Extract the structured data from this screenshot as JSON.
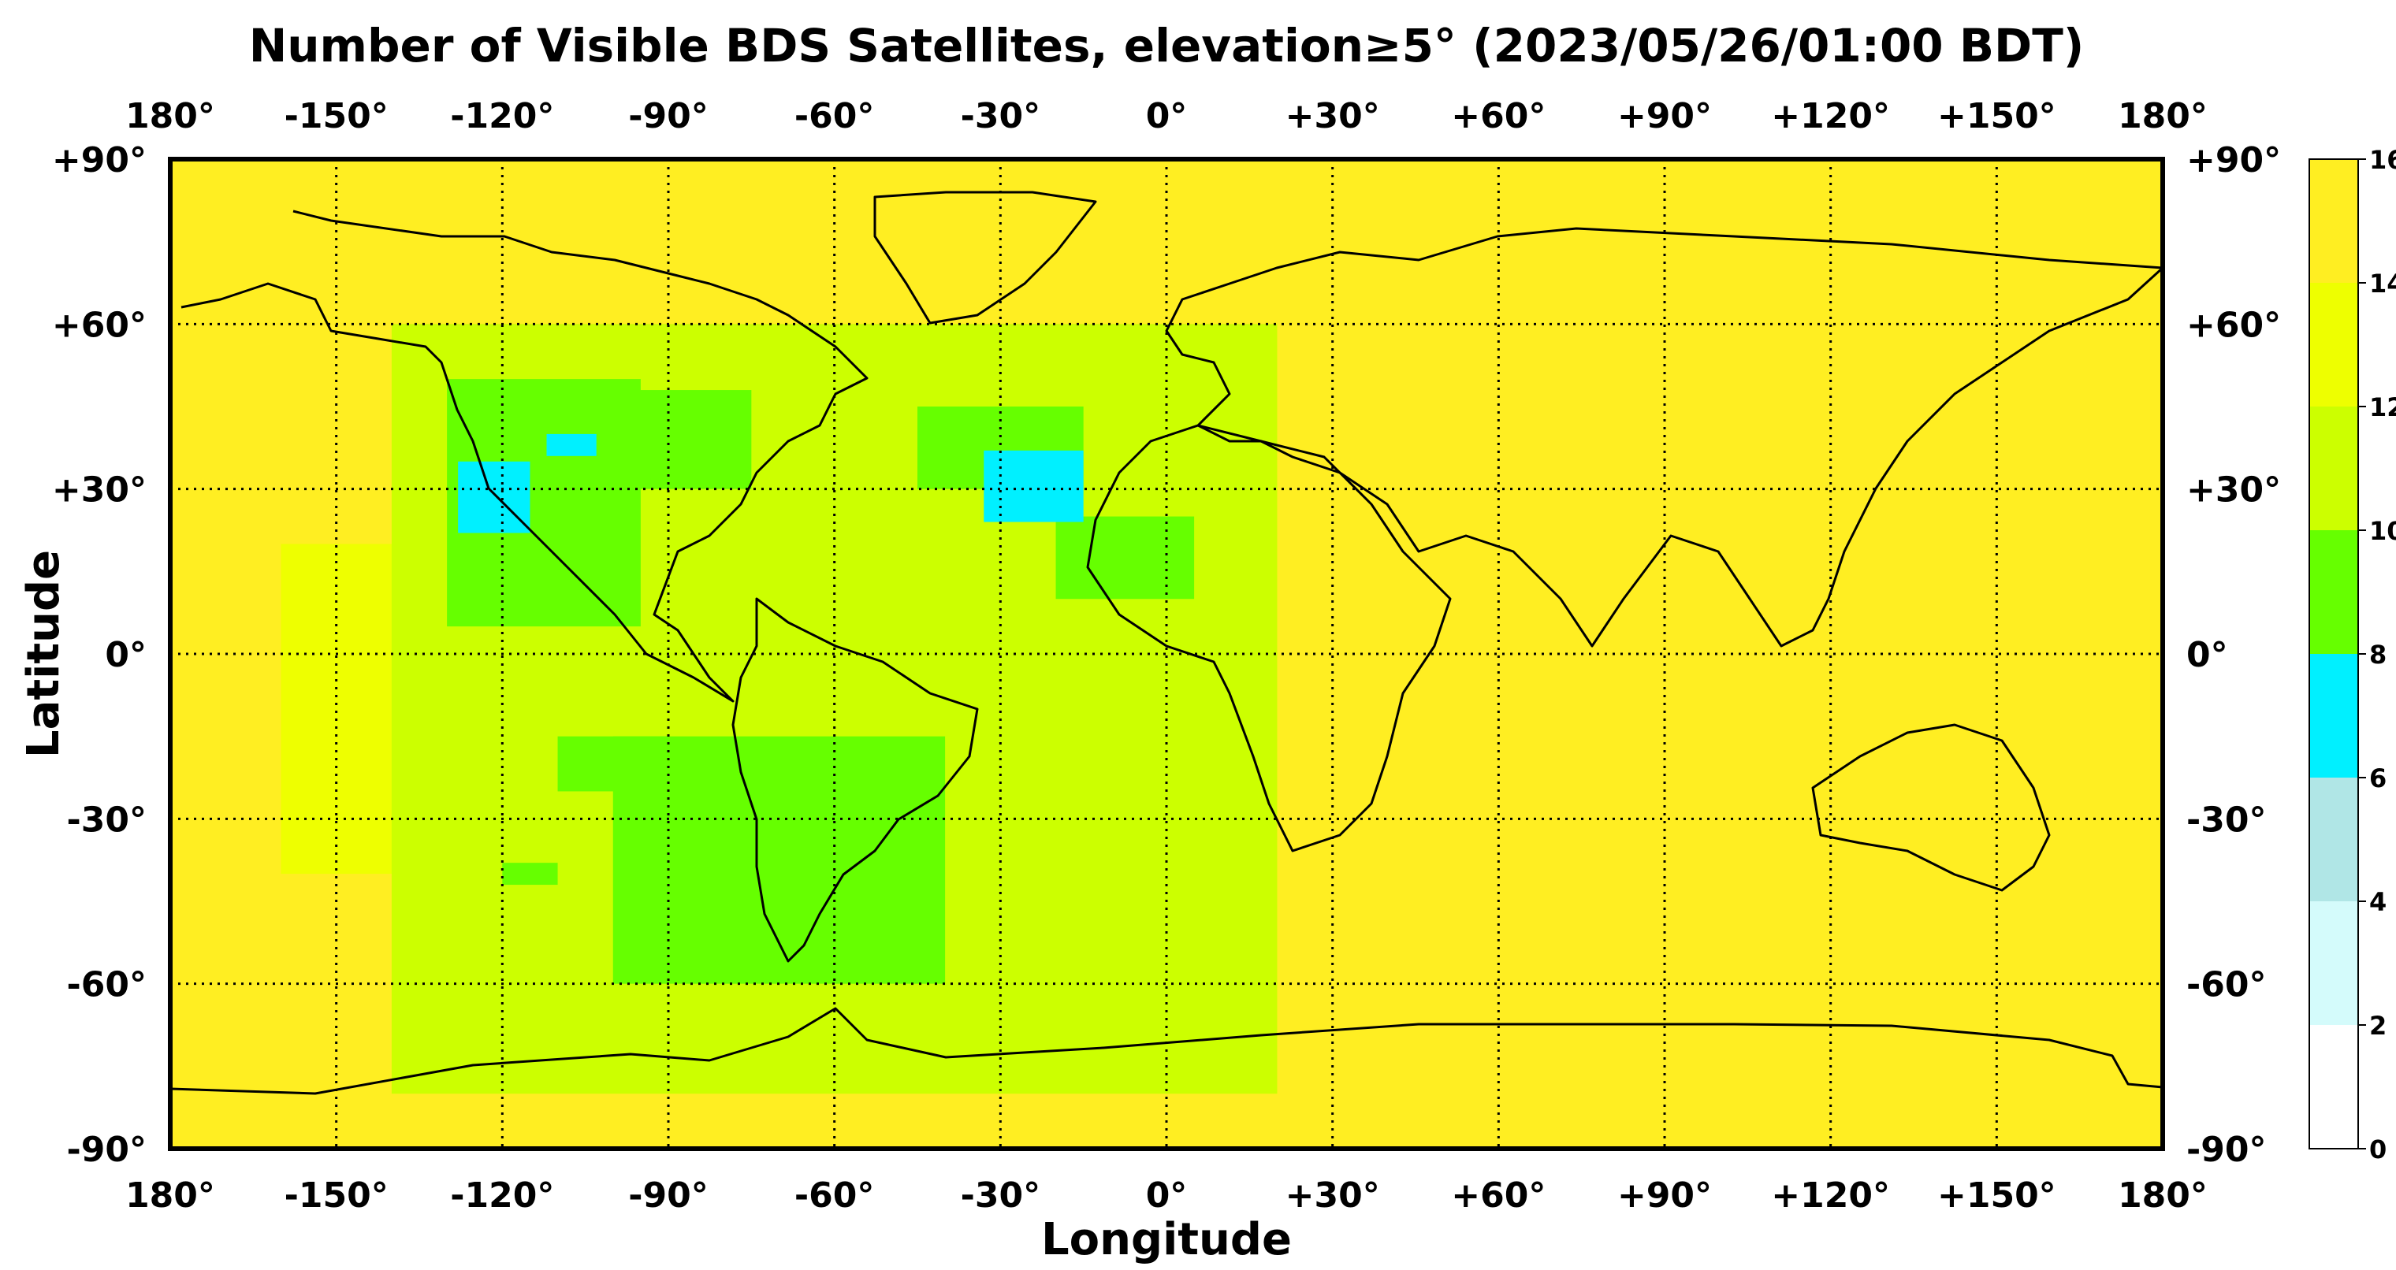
{
  "chart_data": {
    "type": "heatmap",
    "title": "Number of Visible BDS Satellites, elevation≥5° (2023/05/26/01:00 BDT)",
    "xlabel": "Longitude",
    "ylabel": "Latitude",
    "xlim": [
      -180,
      180
    ],
    "ylim": [
      -90,
      90
    ],
    "x_ticks": [
      -180,
      -150,
      -120,
      -90,
      -60,
      -30,
      0,
      30,
      60,
      90,
      120,
      150,
      180
    ],
    "y_ticks": [
      90,
      60,
      30,
      0,
      -30,
      -60,
      -90
    ],
    "x_tick_labels": [
      "180°",
      "-150°",
      "-120°",
      "-90°",
      "-60°",
      "-30°",
      "0°",
      "+30°",
      "+60°",
      "+90°",
      "+120°",
      "+150°",
      "180°"
    ],
    "y_tick_labels": [
      "+90°",
      "+60°",
      "+30°",
      "0°",
      "-30°",
      "-60°",
      "-90°"
    ],
    "grid": true,
    "grid_style": "dotted",
    "colorbar": {
      "boundaries": [
        0,
        2,
        4,
        6,
        8,
        10,
        12,
        14,
        16
      ],
      "tick_labels": [
        "0",
        "2",
        "4",
        "6",
        "8",
        "10",
        "12",
        "14",
        "16"
      ],
      "colors": [
        "#ffffff",
        "#d4fbfb",
        "#b0e6e6",
        "#00f0ff",
        "#66ff00",
        "#ccff00",
        "#eeff00",
        "#ffee22"
      ]
    },
    "background_value": 15,
    "regions": [
      {
        "lon": [
          -160,
          -120
        ],
        "lat": [
          -40,
          20
        ],
        "value": 13
      },
      {
        "lon": [
          -140,
          20
        ],
        "lat": [
          -80,
          60
        ],
        "value": 11
      },
      {
        "lon": [
          -120,
          0
        ],
        "lat": [
          -50,
          40
        ],
        "value": 11
      },
      {
        "lon": [
          -130,
          -95
        ],
        "lat": [
          5,
          50
        ],
        "value": 9
      },
      {
        "lon": [
          -100,
          -75
        ],
        "lat": [
          30,
          48
        ],
        "value": 9
      },
      {
        "lon": [
          -45,
          -15
        ],
        "lat": [
          30,
          45
        ],
        "value": 9
      },
      {
        "lon": [
          -20,
          5
        ],
        "lat": [
          10,
          25
        ],
        "value": 9
      },
      {
        "lon": [
          -100,
          -40
        ],
        "lat": [
          -60,
          -15
        ],
        "value": 9
      },
      {
        "lon": [
          -110,
          -90
        ],
        "lat": [
          -25,
          -15
        ],
        "value": 9
      },
      {
        "lon": [
          -120,
          -110
        ],
        "lat": [
          -42,
          -38
        ],
        "value": 9
      },
      {
        "lon": [
          -128,
          -115
        ],
        "lat": [
          22,
          35
        ],
        "value": 7
      },
      {
        "lon": [
          -112,
          -103
        ],
        "lat": [
          36,
          40
        ],
        "value": 7
      },
      {
        "lon": [
          -33,
          -15
        ],
        "lat": [
          24,
          37
        ],
        "value": 7
      }
    ]
  }
}
